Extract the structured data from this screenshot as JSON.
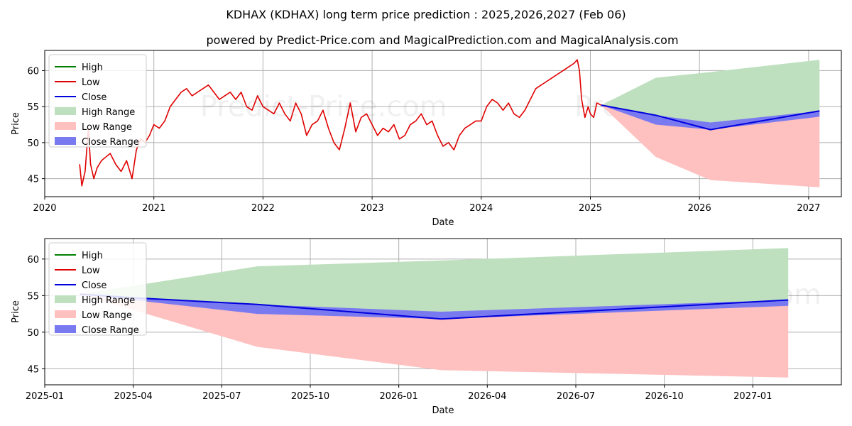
{
  "title": "KDHAX (KDHAX) long term price prediction : 2025,2026,2027 (Feb 06)",
  "subtitle": "powered by Predict-Price.com and MagicalPrediction.com and MagicalAnalysis.com",
  "watermark": "Predict-Price.com",
  "colors": {
    "high": "#008000",
    "low": "#e00000",
    "close": "#0000dd",
    "high_range": "#bfe0bf",
    "low_range": "#ffc0c0",
    "close_range": "#7a7af0",
    "grid": "#b0b0b0"
  },
  "legend": [
    "High",
    "Low",
    "Close",
    "High Range",
    "Low Range",
    "Close Range"
  ],
  "chart_data": [
    {
      "type": "line",
      "name": "long-term",
      "xlabel": "Date",
      "ylabel": "Price",
      "xlim": [
        2020.0,
        2027.3
      ],
      "ylim": [
        42.5,
        62.8
      ],
      "x_ticks": [
        2020,
        2021,
        2022,
        2023,
        2024,
        2025,
        2026,
        2027
      ],
      "x_tick_labels": [
        "2020",
        "2021",
        "2022",
        "2023",
        "2024",
        "2025",
        "2026",
        "2027"
      ],
      "y_ticks": [
        45,
        50,
        55,
        60
      ],
      "y_tick_labels": [
        "45",
        "50",
        "55",
        "60"
      ],
      "grid": true,
      "legend_position": "top-left",
      "series": [
        {
          "name": "Low (historical price)",
          "x": [
            2020.32,
            2020.34,
            2020.37,
            2020.4,
            2020.42,
            2020.45,
            2020.48,
            2020.52,
            2020.56,
            2020.6,
            2020.65,
            2020.7,
            2020.75,
            2020.8,
            2020.84,
            2020.88,
            2020.92,
            2020.96,
            2021.0,
            2021.05,
            2021.1,
            2021.15,
            2021.2,
            2021.25,
            2021.3,
            2021.35,
            2021.4,
            2021.45,
            2021.5,
            2021.55,
            2021.6,
            2021.65,
            2021.7,
            2021.75,
            2021.8,
            2021.85,
            2021.9,
            2021.95,
            2022.0,
            2022.05,
            2022.1,
            2022.15,
            2022.2,
            2022.25,
            2022.3,
            2022.35,
            2022.4,
            2022.45,
            2022.5,
            2022.55,
            2022.6,
            2022.65,
            2022.7,
            2022.75,
            2022.8,
            2022.85,
            2022.9,
            2022.95,
            2023.0,
            2023.05,
            2023.1,
            2023.15,
            2023.2,
            2023.25,
            2023.3,
            2023.35,
            2023.4,
            2023.45,
            2023.5,
            2023.55,
            2023.6,
            2023.65,
            2023.7,
            2023.75,
            2023.8,
            2023.85,
            2023.9,
            2023.95,
            2024.0,
            2024.05,
            2024.1,
            2024.15,
            2024.2,
            2024.25,
            2024.3,
            2024.35,
            2024.4,
            2024.45,
            2024.5,
            2024.55,
            2024.6,
            2024.65,
            2024.7,
            2024.75,
            2024.8,
            2024.85,
            2024.88,
            2024.9,
            2024.92,
            2024.95,
            2024.98,
            2025.0,
            2025.03,
            2025.06,
            2025.1
          ],
          "values": [
            47.0,
            44.0,
            46.0,
            52.0,
            47.0,
            45.0,
            46.5,
            47.5,
            48.0,
            48.5,
            47.0,
            46.0,
            47.5,
            45.0,
            49.0,
            50.5,
            50.0,
            51.0,
            52.5,
            52.0,
            53.0,
            55.0,
            56.0,
            57.0,
            57.5,
            56.5,
            57.0,
            57.5,
            58.0,
            57.0,
            56.0,
            56.5,
            57.0,
            56.0,
            57.0,
            55.0,
            54.5,
            56.5,
            55.0,
            54.5,
            54.0,
            55.5,
            54.0,
            53.0,
            55.5,
            54.0,
            51.0,
            52.5,
            53.0,
            54.5,
            52.0,
            50.0,
            49.0,
            52.0,
            55.5,
            51.5,
            53.5,
            54.0,
            52.5,
            51.0,
            52.0,
            51.5,
            52.5,
            50.5,
            51.0,
            52.5,
            53.0,
            54.0,
            52.5,
            53.0,
            51.0,
            49.5,
            50.0,
            49.0,
            51.0,
            52.0,
            52.5,
            53.0,
            53.0,
            55.0,
            56.0,
            55.5,
            54.5,
            55.5,
            54.0,
            53.5,
            54.5,
            56.0,
            57.5,
            58.0,
            58.5,
            59.0,
            59.5,
            60.0,
            60.5,
            61.0,
            61.5,
            60.0,
            56.0,
            53.5,
            55.0,
            54.0,
            53.5,
            55.5,
            55.2
          ]
        },
        {
          "name": "Close",
          "x": [
            2025.1,
            2025.6,
            2026.1,
            2027.1
          ],
          "values": [
            55.2,
            53.8,
            51.8,
            54.4
          ]
        }
      ],
      "ranges": [
        {
          "name": "High Range",
          "x": [
            2025.1,
            2025.6,
            2026.1,
            2027.1
          ],
          "upper": [
            55.2,
            59.0,
            59.8,
            61.5
          ],
          "lower": [
            55.2,
            53.8,
            51.8,
            54.4
          ]
        },
        {
          "name": "Low Range",
          "x": [
            2025.1,
            2025.6,
            2026.1,
            2027.1
          ],
          "upper": [
            55.2,
            53.8,
            51.8,
            54.4
          ],
          "lower": [
            55.2,
            48.0,
            44.8,
            43.8
          ]
        },
        {
          "name": "Close Range",
          "x": [
            2025.1,
            2025.6,
            2026.1,
            2027.1
          ],
          "upper": [
            55.2,
            53.8,
            52.8,
            54.4
          ],
          "lower": [
            55.2,
            52.5,
            51.8,
            53.6
          ]
        }
      ]
    },
    {
      "type": "line",
      "name": "zoomed-forecast",
      "xlabel": "Date",
      "ylabel": "Price",
      "xlim": [
        2025.0,
        2027.25
      ],
      "ylim": [
        42.8,
        62.8
      ],
      "x_ticks": [
        2025.0,
        2025.25,
        2025.5,
        2025.75,
        2026.0,
        2026.25,
        2026.5,
        2026.75,
        2027.0
      ],
      "x_tick_labels": [
        "2025-01",
        "2025-04",
        "2025-07",
        "2025-10",
        "2026-01",
        "2026-04",
        "2026-07",
        "2026-10",
        "2027-01"
      ],
      "y_ticks": [
        45,
        50,
        55,
        60
      ],
      "y_tick_labels": [
        "45",
        "50",
        "55",
        "60"
      ],
      "grid": true,
      "legend_position": "top-left",
      "series": [
        {
          "name": "Close",
          "x": [
            2025.1,
            2025.25,
            2025.6,
            2026.12,
            2027.1
          ],
          "values": [
            55.2,
            54.7,
            53.8,
            51.8,
            54.4
          ]
        }
      ],
      "ranges": [
        {
          "name": "High Range",
          "x": [
            2025.1,
            2025.6,
            2026.12,
            2027.1
          ],
          "upper": [
            55.2,
            59.0,
            59.8,
            61.5
          ],
          "lower": [
            55.2,
            53.8,
            51.8,
            54.4
          ]
        },
        {
          "name": "Low Range",
          "x": [
            2025.1,
            2025.6,
            2026.12,
            2027.1
          ],
          "upper": [
            55.2,
            53.8,
            51.8,
            54.4
          ],
          "lower": [
            55.2,
            48.0,
            44.8,
            43.8
          ]
        },
        {
          "name": "Close Range",
          "x": [
            2025.1,
            2025.6,
            2026.12,
            2027.1
          ],
          "upper": [
            55.2,
            53.8,
            52.8,
            54.4
          ],
          "lower": [
            55.2,
            52.5,
            51.8,
            53.6
          ]
        }
      ]
    }
  ]
}
